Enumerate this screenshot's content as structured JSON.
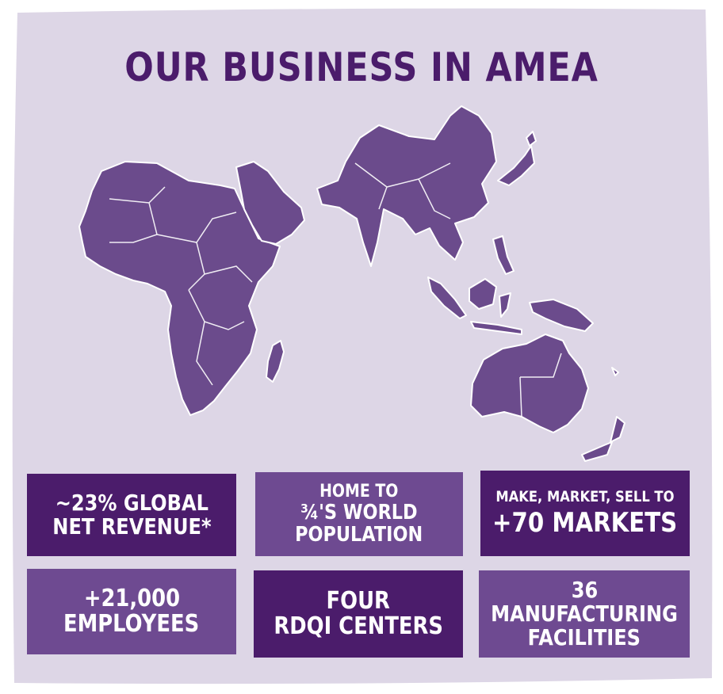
{
  "title": "OUR BUSINESS IN AMEA",
  "colors": {
    "background_card": "#ddd6e6",
    "dark_purple": "#4b1c6b",
    "mid_purple": "#6e4a91",
    "map_fill": "#6b4b8c",
    "map_border": "#ffffff"
  },
  "map": {
    "icon": "amea-region-map",
    "regions": [
      "Africa",
      "Middle East",
      "Asia",
      "Australia",
      "New Zealand"
    ]
  },
  "stats": [
    {
      "line1": "~23% GLOBAL",
      "line2": "NET REVENUE*"
    },
    {
      "line1": "HOME TO",
      "line2": "¾'S WORLD",
      "line3": "POPULATION"
    },
    {
      "line1": "MAKE, MARKET, SELL TO",
      "line2": "+70 MARKETS"
    },
    {
      "line1": "+21,000",
      "line2": "EMPLOYEES"
    },
    {
      "line1": "FOUR",
      "line2": "RDQI CENTERS"
    },
    {
      "line1": "36",
      "line2": "MANUFACTURING",
      "line3": "FACILITIES"
    }
  ]
}
